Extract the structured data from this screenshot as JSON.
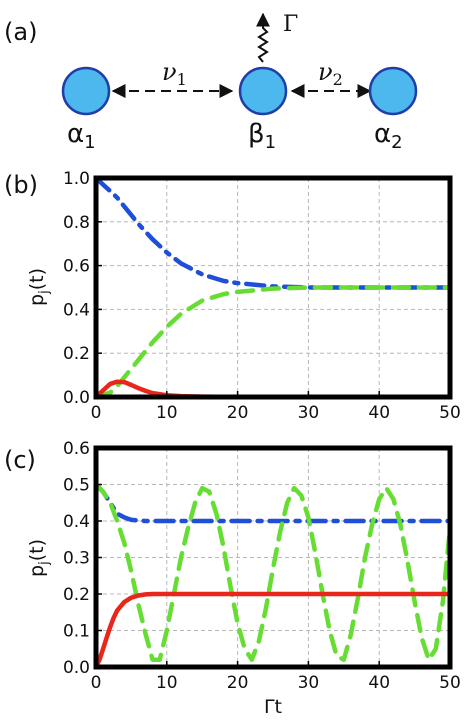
{
  "diagram": {
    "panel_label": "(a)",
    "nodes": [
      {
        "label_base": "α",
        "label_sub": "1"
      },
      {
        "label_base": "β",
        "label_sub": "1"
      },
      {
        "label_base": "α",
        "label_sub": "2"
      }
    ],
    "couplings": [
      {
        "base": "ν",
        "sub": "1"
      },
      {
        "base": "ν",
        "sub": "2"
      }
    ],
    "decay_label": "Γ",
    "node_color": "#4db8ee"
  },
  "chart_data": [
    {
      "type": "line",
      "panel_label": "(b)",
      "ylabel": "p",
      "ylabel_sub": "j",
      "ylabel_suffix": "(t)",
      "xlabel": "",
      "xlim": [
        0,
        50
      ],
      "ylim": [
        0,
        1.0
      ],
      "xticks": [
        0,
        10,
        20,
        30,
        40,
        50
      ],
      "yticks": [
        0.0,
        0.2,
        0.4,
        0.6,
        0.8,
        1.0
      ],
      "ytick_labels": [
        "0.0",
        "0.2",
        "0.4",
        "0.6",
        "0.8",
        "1.0"
      ],
      "grid": true,
      "series": [
        {
          "color": "#1f4fd8",
          "style": "dash-dot",
          "x": [
            0,
            1,
            2,
            3,
            4,
            5,
            6,
            8,
            10,
            12,
            15,
            18,
            20,
            25,
            30,
            40,
            50
          ],
          "y": [
            1.0,
            0.97,
            0.94,
            0.91,
            0.87,
            0.83,
            0.79,
            0.72,
            0.66,
            0.61,
            0.56,
            0.53,
            0.52,
            0.505,
            0.5,
            0.5,
            0.5
          ]
        },
        {
          "color": "#66dd33",
          "style": "dash",
          "x": [
            0,
            2,
            3,
            4,
            5,
            6,
            8,
            10,
            12,
            15,
            18,
            20,
            25,
            30,
            40,
            50
          ],
          "y": [
            0.0,
            0.02,
            0.05,
            0.09,
            0.13,
            0.17,
            0.25,
            0.32,
            0.38,
            0.44,
            0.47,
            0.48,
            0.495,
            0.5,
            0.5,
            0.5
          ]
        },
        {
          "color": "#e8271a",
          "style": "solid",
          "x": [
            0,
            1,
            2,
            3,
            4,
            5,
            6,
            7,
            8,
            10,
            12,
            15,
            20,
            30,
            40,
            50
          ],
          "y": [
            0.0,
            0.03,
            0.06,
            0.07,
            0.068,
            0.055,
            0.04,
            0.028,
            0.018,
            0.008,
            0.004,
            0.002,
            0.0,
            0.0,
            0.0,
            0.0
          ]
        }
      ]
    },
    {
      "type": "line",
      "panel_label": "(c)",
      "ylabel": "p",
      "ylabel_sub": "j",
      "ylabel_suffix": "(t)",
      "xlabel": "Γt",
      "xlim": [
        0,
        50
      ],
      "ylim": [
        0,
        0.6
      ],
      "xticks": [
        0,
        10,
        20,
        30,
        40,
        50
      ],
      "yticks": [
        0.0,
        0.1,
        0.2,
        0.3,
        0.4,
        0.5,
        0.6
      ],
      "ytick_labels": [
        "0.0",
        "0.1",
        "0.2",
        "0.3",
        "0.4",
        "0.5",
        "0.6"
      ],
      "grid": true,
      "series": [
        {
          "color": "#1f4fd8",
          "style": "dash-dot",
          "x": [
            0,
            1,
            2,
            3,
            4,
            5,
            7,
            10,
            20,
            30,
            40,
            50
          ],
          "y": [
            0.5,
            0.48,
            0.45,
            0.42,
            0.41,
            0.403,
            0.4,
            0.4,
            0.4,
            0.4,
            0.4,
            0.4
          ]
        },
        {
          "color": "#66dd33",
          "style": "dash",
          "x": [
            0,
            1,
            2,
            3,
            4,
            5,
            6,
            7,
            8,
            9,
            10,
            11,
            12,
            13,
            14,
            15,
            16,
            17,
            18,
            19,
            20,
            21,
            22,
            23,
            24,
            25,
            26,
            27,
            28,
            29,
            30,
            31,
            32,
            33,
            34,
            35,
            36,
            37,
            38,
            39,
            40,
            41,
            42,
            43,
            44,
            45,
            46,
            47,
            48,
            49,
            50
          ],
          "y": [
            0.5,
            0.48,
            0.45,
            0.4,
            0.34,
            0.26,
            0.17,
            0.09,
            0.02,
            0.02,
            0.1,
            0.2,
            0.3,
            0.38,
            0.45,
            0.49,
            0.48,
            0.42,
            0.33,
            0.22,
            0.12,
            0.05,
            0.02,
            0.07,
            0.16,
            0.27,
            0.37,
            0.45,
            0.49,
            0.47,
            0.41,
            0.31,
            0.2,
            0.1,
            0.03,
            0.02,
            0.09,
            0.19,
            0.3,
            0.39,
            0.46,
            0.49,
            0.46,
            0.39,
            0.29,
            0.18,
            0.08,
            0.02,
            0.05,
            0.18,
            0.38
          ]
        },
        {
          "color": "#e8271a",
          "style": "solid",
          "x": [
            0,
            0.5,
            1,
            1.5,
            2,
            2.5,
            3,
            4,
            5,
            6,
            7,
            8,
            10,
            20,
            30,
            40,
            50
          ],
          "y": [
            0.0,
            0.02,
            0.05,
            0.08,
            0.11,
            0.135,
            0.155,
            0.178,
            0.19,
            0.196,
            0.199,
            0.2,
            0.2,
            0.2,
            0.2,
            0.2,
            0.2
          ]
        }
      ]
    }
  ]
}
